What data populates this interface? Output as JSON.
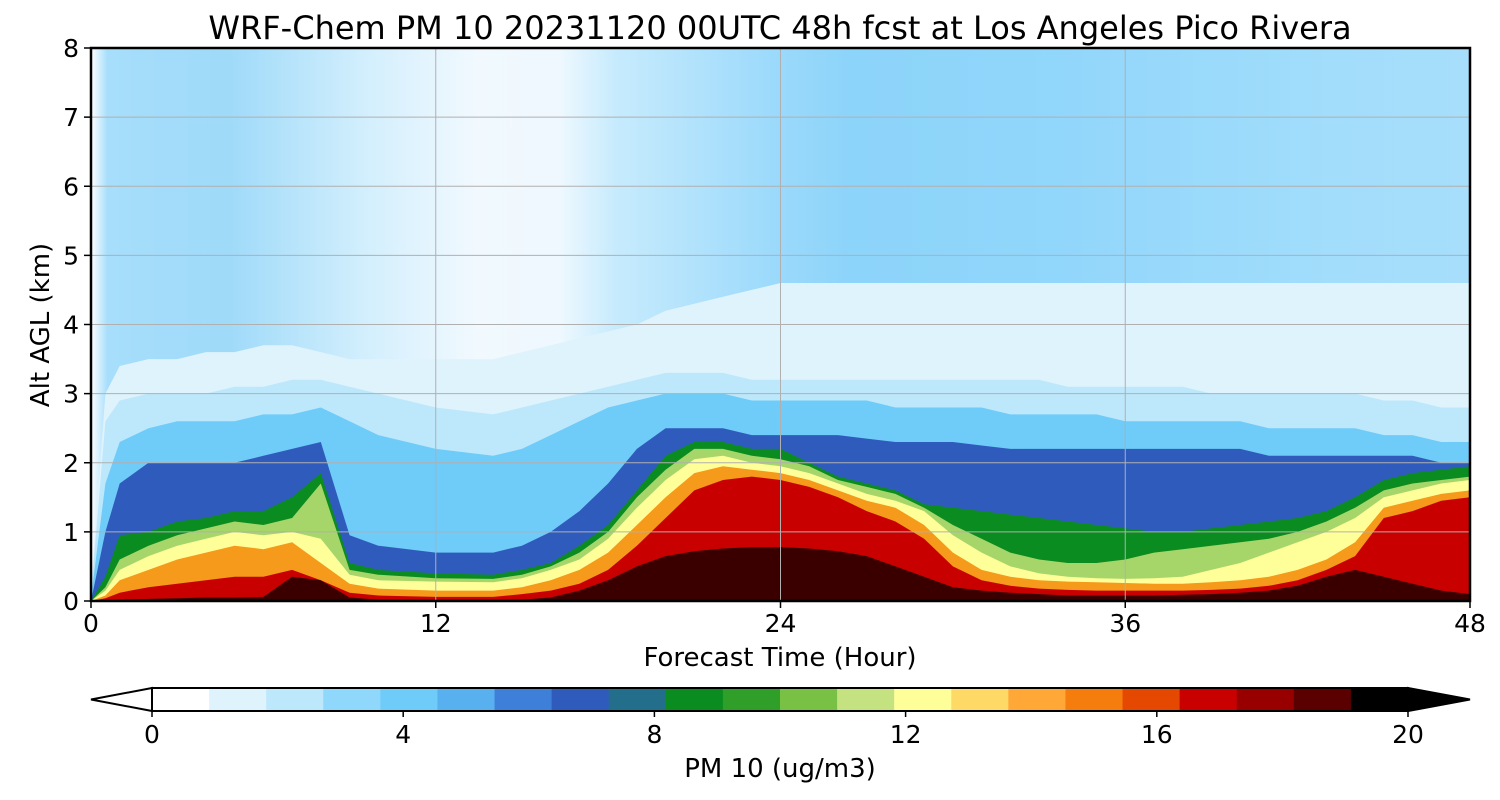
{
  "chart_data": {
    "type": "heatmap",
    "title": "WRF-Chem PM 10  20231120 00UTC 48h fcst at Los Angeles Pico Rivera",
    "xlabel": "Forecast Time (Hour)",
    "ylabel": "Alt AGL (km)",
    "xlim": [
      0,
      48
    ],
    "ylim": [
      0,
      8
    ],
    "xticks": [
      "0",
      "12",
      "24",
      "36",
      "48"
    ],
    "yticks": [
      "0",
      "1",
      "2",
      "3",
      "4",
      "5",
      "6",
      "7",
      "8"
    ],
    "grid": true,
    "colorbar": {
      "label": "PM 10  (ug/m3)",
      "range": [
        0,
        20
      ],
      "ticks": [
        "0",
        "4",
        "8",
        "12",
        "16",
        "20"
      ],
      "extend": "both",
      "colors": [
        "#ffffff",
        "#dff3fd",
        "#bde8fc",
        "#8fd8fb",
        "#6fcbf8",
        "#58b0ee",
        "#3e7fd9",
        "#2f5bbd",
        "#236f8b",
        "#0a8c20",
        "#2f9f2a",
        "#78c145",
        "#c4e27f",
        "#ffff9a",
        "#ffd966",
        "#ffa838",
        "#f57d0d",
        "#e54800",
        "#c90000",
        "#980000",
        "#5a0000",
        "#000000"
      ]
    },
    "x": [
      0,
      0.5,
      1,
      2,
      3,
      4,
      5,
      6,
      7,
      8,
      9,
      10,
      12,
      14,
      15,
      16,
      17,
      18,
      19,
      20,
      21,
      22,
      23,
      24,
      25,
      26,
      27,
      28,
      29,
      30,
      31,
      32,
      33,
      34,
      35,
      36,
      37,
      38,
      39,
      40,
      41,
      42,
      43,
      44,
      45,
      46,
      47,
      48
    ],
    "layers": [
      {
        "threshold": 0.8,
        "color": "#dff3fd",
        "top": [
          0.2,
          3.0,
          3.4,
          3.5,
          3.5,
          3.6,
          3.6,
          3.7,
          3.7,
          3.6,
          3.5,
          3.5,
          3.5,
          3.5,
          3.6,
          3.7,
          3.8,
          3.9,
          4.0,
          4.2,
          4.3,
          4.4,
          4.5,
          4.6,
          4.6,
          4.6,
          4.6,
          4.6,
          4.6,
          4.6,
          4.6,
          4.6,
          4.6,
          4.6,
          4.6,
          4.6,
          4.6,
          4.6,
          4.6,
          4.6,
          4.6,
          4.6,
          4.6,
          4.6,
          4.6,
          4.6,
          4.6,
          4.6
        ]
      },
      {
        "threshold": 1.6,
        "color": "#bde8fc",
        "top": [
          0.1,
          2.6,
          2.9,
          3.0,
          3.0,
          3.0,
          3.1,
          3.1,
          3.2,
          3.2,
          3.1,
          3.0,
          2.8,
          2.7,
          2.8,
          2.9,
          3.0,
          3.1,
          3.2,
          3.3,
          3.3,
          3.3,
          3.2,
          3.2,
          3.2,
          3.2,
          3.2,
          3.2,
          3.2,
          3.2,
          3.2,
          3.2,
          3.2,
          3.1,
          3.1,
          3.1,
          3.1,
          3.1,
          3.0,
          3.0,
          3.0,
          3.0,
          3.0,
          3.0,
          2.9,
          2.9,
          2.8,
          2.8
        ]
      },
      {
        "threshold": 3.0,
        "color": "#6fcbf8",
        "top": [
          0.05,
          1.7,
          2.3,
          2.5,
          2.6,
          2.6,
          2.6,
          2.7,
          2.7,
          2.8,
          2.6,
          2.4,
          2.2,
          2.1,
          2.2,
          2.4,
          2.6,
          2.8,
          2.9,
          3.0,
          3.0,
          3.0,
          2.9,
          2.9,
          2.9,
          2.9,
          2.9,
          2.8,
          2.8,
          2.8,
          2.8,
          2.7,
          2.7,
          2.7,
          2.7,
          2.6,
          2.6,
          2.6,
          2.6,
          2.6,
          2.5,
          2.5,
          2.5,
          2.5,
          2.4,
          2.4,
          2.3,
          2.3
        ]
      },
      {
        "threshold": 5.0,
        "color": "#2f5bbd",
        "top": [
          0.0,
          1.0,
          1.7,
          2.0,
          2.0,
          2.0,
          2.0,
          2.1,
          2.2,
          2.3,
          0.95,
          0.8,
          0.7,
          0.7,
          0.8,
          1.0,
          1.3,
          1.7,
          2.2,
          2.5,
          2.5,
          2.5,
          2.4,
          2.4,
          2.4,
          2.4,
          2.35,
          2.3,
          2.3,
          2.3,
          2.25,
          2.2,
          2.2,
          2.2,
          2.2,
          2.2,
          2.2,
          2.2,
          2.2,
          2.2,
          2.1,
          2.1,
          2.1,
          2.1,
          2.1,
          2.1,
          2.0,
          2.0
        ]
      },
      {
        "threshold": 7.5,
        "color": "#0a8c20",
        "top": [
          0.0,
          0.35,
          0.95,
          1.0,
          1.15,
          1.2,
          1.3,
          1.3,
          1.5,
          1.85,
          0.55,
          0.45,
          0.4,
          0.38,
          0.45,
          0.55,
          0.8,
          1.1,
          1.6,
          2.1,
          2.3,
          2.3,
          2.2,
          2.2,
          2.0,
          1.8,
          1.7,
          1.6,
          1.4,
          1.35,
          1.3,
          1.25,
          1.2,
          1.15,
          1.1,
          1.05,
          1.0,
          1.0,
          1.05,
          1.1,
          1.15,
          1.2,
          1.3,
          1.5,
          1.75,
          1.85,
          1.9,
          1.95
        ]
      },
      {
        "threshold": 9.5,
        "color": "#a6d66a",
        "top": [
          0.0,
          0.2,
          0.6,
          0.8,
          0.95,
          1.05,
          1.15,
          1.1,
          1.2,
          1.7,
          0.45,
          0.38,
          0.33,
          0.32,
          0.38,
          0.5,
          0.7,
          1.0,
          1.5,
          1.9,
          2.2,
          2.2,
          2.1,
          2.05,
          1.95,
          1.75,
          1.65,
          1.55,
          1.35,
          1.1,
          0.9,
          0.7,
          0.6,
          0.55,
          0.55,
          0.6,
          0.7,
          0.75,
          0.8,
          0.85,
          0.9,
          1.0,
          1.15,
          1.35,
          1.6,
          1.7,
          1.75,
          1.8
        ]
      },
      {
        "threshold": 10.5,
        "color": "#ffff9a",
        "top": [
          0.0,
          0.15,
          0.45,
          0.65,
          0.8,
          0.9,
          1.0,
          0.95,
          1.0,
          0.9,
          0.38,
          0.3,
          0.28,
          0.27,
          0.33,
          0.45,
          0.6,
          0.9,
          1.35,
          1.75,
          2.05,
          2.1,
          2.0,
          1.95,
          1.85,
          1.7,
          1.55,
          1.45,
          1.3,
          0.95,
          0.7,
          0.5,
          0.4,
          0.35,
          0.33,
          0.32,
          0.33,
          0.35,
          0.45,
          0.55,
          0.7,
          0.85,
          1.0,
          1.2,
          1.5,
          1.6,
          1.7,
          1.75
        ]
      },
      {
        "threshold": 12.5,
        "color": "#f59a1a",
        "top": [
          0.0,
          0.08,
          0.3,
          0.45,
          0.6,
          0.7,
          0.8,
          0.75,
          0.85,
          0.55,
          0.25,
          0.18,
          0.15,
          0.15,
          0.2,
          0.3,
          0.45,
          0.7,
          1.1,
          1.5,
          1.85,
          1.95,
          1.9,
          1.85,
          1.75,
          1.6,
          1.45,
          1.35,
          1.1,
          0.7,
          0.45,
          0.35,
          0.3,
          0.28,
          0.27,
          0.26,
          0.25,
          0.25,
          0.27,
          0.3,
          0.35,
          0.45,
          0.6,
          0.85,
          1.35,
          1.45,
          1.55,
          1.6
        ]
      },
      {
        "threshold": 15.0,
        "color": "#c90000",
        "top": [
          0.0,
          0.04,
          0.12,
          0.2,
          0.25,
          0.3,
          0.35,
          0.35,
          0.45,
          0.3,
          0.12,
          0.08,
          0.06,
          0.06,
          0.1,
          0.15,
          0.25,
          0.45,
          0.8,
          1.2,
          1.6,
          1.75,
          1.8,
          1.75,
          1.65,
          1.5,
          1.3,
          1.15,
          0.9,
          0.5,
          0.3,
          0.22,
          0.18,
          0.16,
          0.15,
          0.15,
          0.15,
          0.15,
          0.16,
          0.18,
          0.22,
          0.3,
          0.45,
          0.65,
          1.2,
          1.3,
          1.45,
          1.5
        ]
      },
      {
        "threshold": 18.0,
        "color": "#3a0000",
        "top": [
          0.0,
          0.0,
          0.02,
          0.03,
          0.04,
          0.05,
          0.05,
          0.06,
          0.35,
          0.3,
          0.05,
          0.02,
          0.01,
          0.01,
          0.02,
          0.05,
          0.15,
          0.3,
          0.5,
          0.65,
          0.72,
          0.76,
          0.78,
          0.78,
          0.76,
          0.72,
          0.65,
          0.5,
          0.35,
          0.2,
          0.15,
          0.12,
          0.1,
          0.08,
          0.08,
          0.08,
          0.08,
          0.09,
          0.1,
          0.12,
          0.15,
          0.22,
          0.35,
          0.45,
          0.35,
          0.25,
          0.15,
          0.1
        ]
      }
    ]
  }
}
